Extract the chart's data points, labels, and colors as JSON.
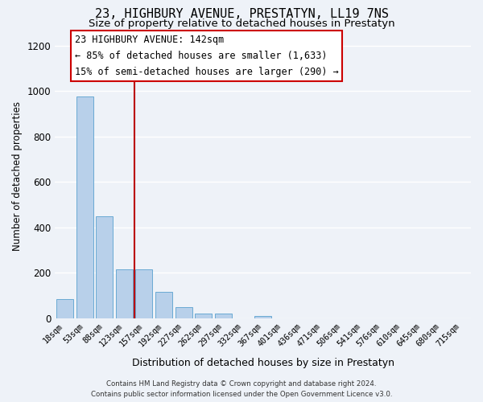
{
  "title": "23, HIGHBURY AVENUE, PRESTATYN, LL19 7NS",
  "subtitle": "Size of property relative to detached houses in Prestatyn",
  "xlabel": "Distribution of detached houses by size in Prestatyn",
  "ylabel": "Number of detached properties",
  "annotation_title": "23 HIGHBURY AVENUE: 142sqm",
  "annotation_line1": "← 85% of detached houses are smaller (1,633)",
  "annotation_line2": "15% of semi-detached houses are larger (290) →",
  "bar_labels": [
    "18sqm",
    "53sqm",
    "88sqm",
    "123sqm",
    "157sqm",
    "192sqm",
    "227sqm",
    "262sqm",
    "297sqm",
    "332sqm",
    "367sqm",
    "401sqm",
    "436sqm",
    "471sqm",
    "506sqm",
    "541sqm",
    "576sqm",
    "610sqm",
    "645sqm",
    "680sqm",
    "715sqm"
  ],
  "bar_values": [
    85,
    975,
    450,
    215,
    215,
    115,
    48,
    20,
    20,
    0,
    12,
    0,
    0,
    0,
    0,
    0,
    0,
    0,
    0,
    0,
    0
  ],
  "bar_color": "#b8d0ea",
  "bar_edge_color": "#6aaad4",
  "vline_color": "#bb0000",
  "ylim": [
    0,
    1250
  ],
  "yticks": [
    0,
    200,
    400,
    600,
    800,
    1000,
    1200
  ],
  "annotation_box_color": "#ffffff",
  "annotation_box_edge": "#cc0000",
  "footer_line1": "Contains HM Land Registry data © Crown copyright and database right 2024.",
  "footer_line2": "Contains public sector information licensed under the Open Government Licence v3.0.",
  "background_color": "#eef2f8",
  "grid_color": "#ffffff"
}
